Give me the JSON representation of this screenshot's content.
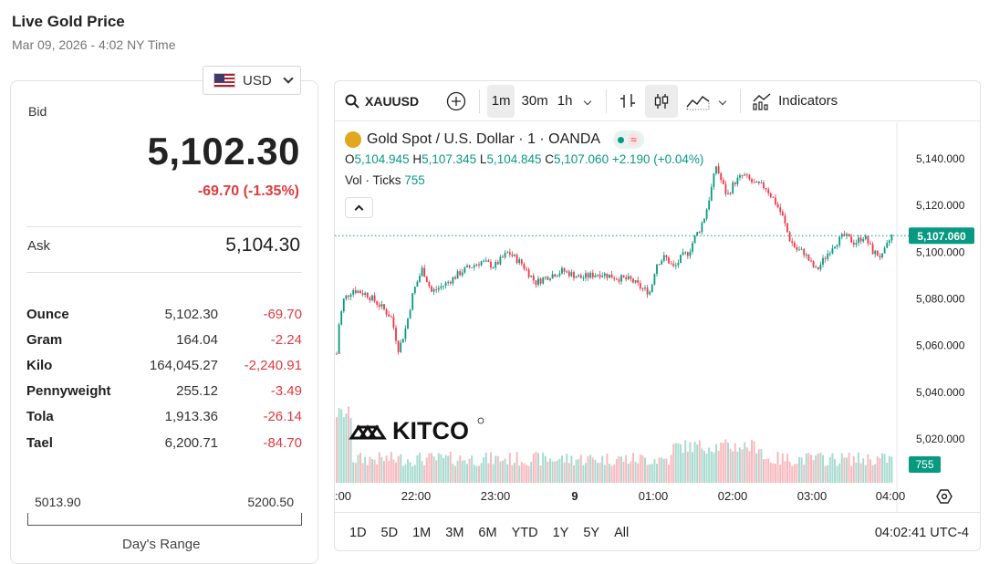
{
  "header": {
    "title": "Live Gold Price",
    "timestamp": "Mar 09, 2026 - 4:02 NY Time"
  },
  "currency_select": {
    "value": "USD"
  },
  "quote": {
    "bid_label": "Bid",
    "bid": "5,102.30",
    "bid_change": "-69.70 (-1.35%)",
    "ask_label": "Ask",
    "ask": "5,104.30"
  },
  "units": [
    {
      "name": "Ounce",
      "price": "5,102.30",
      "change": "-69.70"
    },
    {
      "name": "Gram",
      "price": "164.04",
      "change": "-2.24"
    },
    {
      "name": "Kilo",
      "price": "164,045.27",
      "change": "-2,240.91"
    },
    {
      "name": "Pennyweight",
      "price": "255.12",
      "change": "-3.49"
    },
    {
      "name": "Tola",
      "price": "1,913.36",
      "change": "-26.14"
    },
    {
      "name": "Tael",
      "price": "6,200.71",
      "change": "-84.70"
    }
  ],
  "day_range": {
    "low": "5013.90",
    "high": "5200.50",
    "label": "Day's Range"
  },
  "toolbar": {
    "symbol": "XAUUSD",
    "intervals": [
      "1m",
      "30m",
      "1h"
    ],
    "active_interval": "1m",
    "indicators_label": "Indicators"
  },
  "legend": {
    "title": "Gold Spot / U.S. Dollar · 1 · OANDA",
    "o_label": "O",
    "o": "5,104.945",
    "h_label": "H",
    "h": "5,107.345",
    "l_label": "L",
    "l": "5,104.845",
    "c_label": "C",
    "c": "5,107.060",
    "change": "+2.190 (+0.04%)",
    "vol_label": "Vol · Ticks",
    "vol": "755"
  },
  "watermark": "KITCO",
  "chart_data": {
    "type": "candlestick",
    "x_ticks": [
      ":00",
      "22:00",
      "23:00",
      "9",
      "01:00",
      "02:00",
      "03:00",
      "04:00"
    ],
    "y_ticks": [
      "5,140.000",
      "5,120.000",
      "5,100.000",
      "5,080.000",
      "5,060.000",
      "5,040.000",
      "5,020.000"
    ],
    "ylim": [
      5010,
      5148
    ],
    "last_price": "5,107.060",
    "last_volume": "755",
    "path_points": [
      [
        0,
        5045
      ],
      [
        4,
        5068
      ],
      [
        10,
        5080
      ],
      [
        20,
        5084
      ],
      [
        35,
        5082
      ],
      [
        50,
        5077
      ],
      [
        62,
        5072
      ],
      [
        70,
        5058
      ],
      [
        78,
        5068
      ],
      [
        86,
        5083
      ],
      [
        96,
        5093
      ],
      [
        106,
        5083
      ],
      [
        120,
        5086
      ],
      [
        140,
        5092
      ],
      [
        160,
        5096
      ],
      [
        175,
        5094
      ],
      [
        190,
        5100
      ],
      [
        205,
        5095
      ],
      [
        220,
        5087
      ],
      [
        235,
        5090
      ],
      [
        250,
        5092
      ],
      [
        270,
        5089
      ],
      [
        290,
        5091
      ],
      [
        310,
        5089
      ],
      [
        325,
        5088
      ],
      [
        338,
        5084
      ],
      [
        346,
        5083
      ],
      [
        352,
        5095
      ],
      [
        362,
        5098
      ],
      [
        372,
        5093
      ],
      [
        380,
        5098
      ],
      [
        388,
        5100
      ],
      [
        394,
        5106
      ],
      [
        400,
        5110
      ],
      [
        406,
        5116
      ],
      [
        412,
        5126
      ],
      [
        418,
        5137
      ],
      [
        424,
        5130
      ],
      [
        430,
        5124
      ],
      [
        438,
        5130
      ],
      [
        448,
        5133
      ],
      [
        460,
        5129
      ],
      [
        472,
        5128
      ],
      [
        482,
        5122
      ],
      [
        490,
        5116
      ],
      [
        498,
        5106
      ],
      [
        506,
        5101
      ],
      [
        514,
        5100
      ],
      [
        522,
        5095
      ],
      [
        528,
        5092
      ],
      [
        536,
        5097
      ],
      [
        546,
        5103
      ],
      [
        558,
        5107
      ],
      [
        570,
        5104
      ],
      [
        580,
        5107
      ],
      [
        590,
        5100
      ],
      [
        600,
        5098
      ],
      [
        610,
        5107
      ]
    ]
  },
  "bottom_bar": {
    "ranges": [
      "1D",
      "5D",
      "1M",
      "3M",
      "6M",
      "YTD",
      "1Y",
      "5Y",
      "All"
    ],
    "clock": "04:02:41 UTC-4"
  },
  "colors": {
    "up": "#089981",
    "down": "#f23645",
    "accent": "#e03a3e",
    "vol_up": "#a9dbd0",
    "vol_down": "#f8b9bf"
  }
}
